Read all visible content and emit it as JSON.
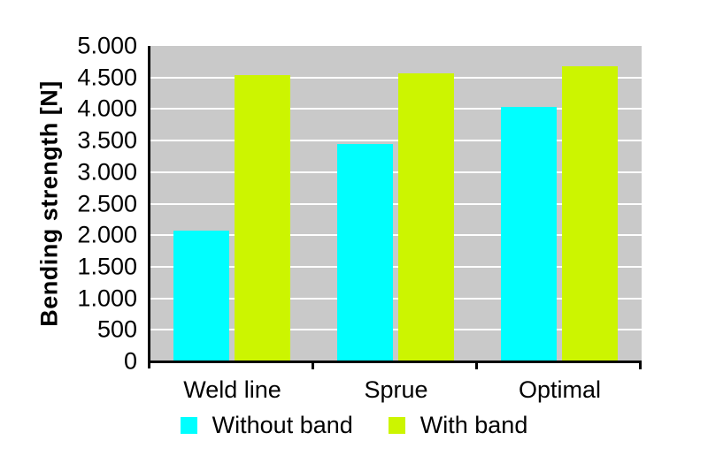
{
  "page": {
    "background": "#FFFFFF",
    "text_color": "#000000"
  },
  "chart_data": {
    "type": "bar",
    "title": "",
    "ylabel": "Bending strength [N]",
    "xlabel": "",
    "categories": [
      "Weld line",
      "Sprue",
      "Optimal"
    ],
    "series": [
      {
        "name": "Without band",
        "color": "#00FFFF",
        "values": [
          2070,
          3440,
          4040
        ]
      },
      {
        "name": "With band",
        "color": "#CCF500",
        "values": [
          4540,
          4570,
          4680
        ]
      }
    ],
    "ylim": [
      0,
      5000
    ],
    "y_tick_interval": 500,
    "y_ticks": [
      {
        "value": 5000,
        "label": "5.000"
      },
      {
        "value": 4500,
        "label": "4.500"
      },
      {
        "value": 4000,
        "label": "4.000"
      },
      {
        "value": 3500,
        "label": "3.500"
      },
      {
        "value": 3000,
        "label": "3.000"
      },
      {
        "value": 2500,
        "label": "2.500"
      },
      {
        "value": 2000,
        "label": "2.000"
      },
      {
        "value": 1500,
        "label": "1.500"
      },
      {
        "value": 1000,
        "label": "1.000"
      },
      {
        "value": 500,
        "label": "500"
      },
      {
        "value": 0,
        "label": "0"
      }
    ],
    "grid": "horizontal",
    "gridline_color": "#FFFFFF",
    "plot_bg": "#C9C9C9",
    "axis_color": "#000000",
    "legend_position": "bottom"
  }
}
